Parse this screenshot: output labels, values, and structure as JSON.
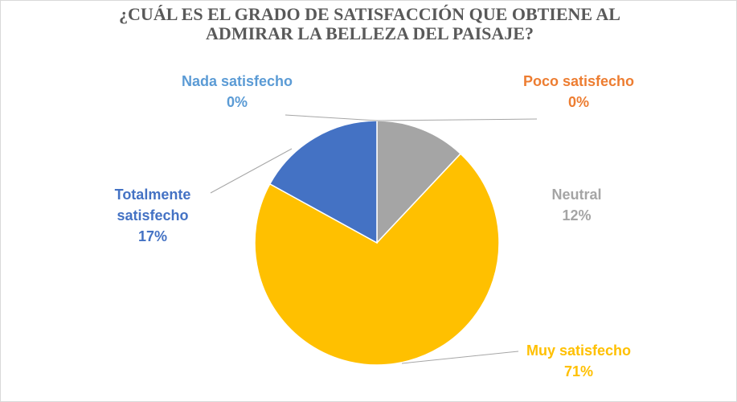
{
  "chart_data": {
    "type": "pie",
    "title": "¿CUÁL ES EL GRADO DE SATISFACCIÓN QUE OBTIENE AL ADMIRAR LA BELLEZA DEL PAISAJE?",
    "categories": [
      "Nada satisfecho",
      "Poco satisfecho",
      "Neutral",
      "Muy satisfecho",
      "Totalmente satisfecho"
    ],
    "values": [
      0,
      0,
      12,
      71,
      17
    ],
    "value_labels": [
      "0%",
      "0%",
      "12%",
      "71%",
      "17%"
    ],
    "colors": [
      "#5b9bd5",
      "#ed7d31",
      "#a5a5a5",
      "#ffc000",
      "#4472c4"
    ]
  }
}
